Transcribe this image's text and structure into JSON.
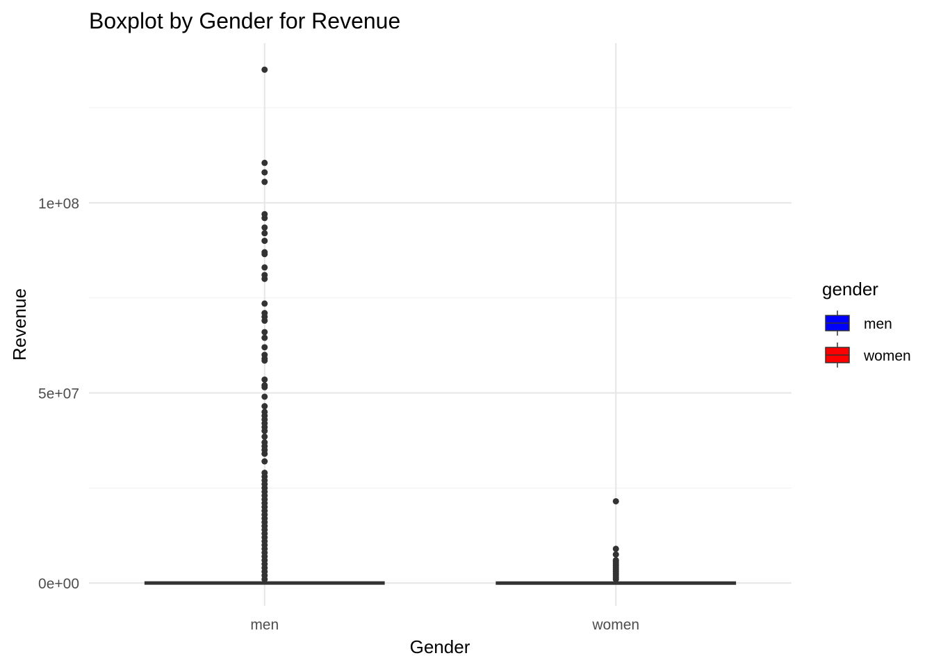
{
  "chart_data": {
    "type": "boxplot",
    "title": "Boxplot by Gender for Revenue",
    "xlabel": "Gender",
    "ylabel": "Revenue",
    "categories": [
      "men",
      "women"
    ],
    "ylim": [
      -6000000,
      142000000
    ],
    "y_ticks": [
      {
        "value": 0,
        "label": "0e+00"
      },
      {
        "value": 50000000,
        "label": "5e+07"
      },
      {
        "value": 100000000,
        "label": "1e+08"
      }
    ],
    "y_minor_ticks": [
      25000000,
      75000000,
      125000000
    ],
    "grid": true,
    "legend": {
      "title": "gender",
      "placement": "right",
      "entries": [
        {
          "label": "men",
          "color": "#0000FF"
        },
        {
          "label": "women",
          "color": "#FF0000"
        }
      ]
    },
    "boxes": [
      {
        "category": "men",
        "fill": "#0000FF",
        "q1": 0,
        "median": 0,
        "q3": 100000,
        "whisker_low": 0,
        "whisker_high": 200000,
        "outliers": [
          135000000,
          110500000,
          108000000,
          105500000,
          97000000,
          96000000,
          93500000,
          92000000,
          90000000,
          87000000,
          86500000,
          83000000,
          81000000,
          80000000,
          73500000,
          71000000,
          70000000,
          69000000,
          66000000,
          64500000,
          62000000,
          60000000,
          59000000,
          58500000,
          53500000,
          52000000,
          51500000,
          49000000,
          46500000,
          45000000,
          44000000,
          43000000,
          42000000,
          41000000,
          40000000,
          38500000,
          37000000,
          36000000,
          35000000,
          34000000,
          32000000,
          29000000,
          28000000,
          27000000,
          26000000,
          25000000,
          24000000,
          23000000,
          22000000,
          21000000,
          20000000,
          19000000,
          18000000,
          17000000,
          16000000,
          15000000,
          14000000,
          13000000,
          12000000,
          11000000,
          10000000,
          9000000,
          8000000,
          7000000,
          6000000,
          5000000,
          4000000,
          3000000,
          2000000,
          1000000
        ]
      },
      {
        "category": "women",
        "fill": "#FF0000",
        "q1": 0,
        "median": 0,
        "q3": 80000,
        "whisker_low": 0,
        "whisker_high": 150000,
        "outliers": [
          21500000,
          9000000,
          7500000,
          6000000,
          5500000,
          5000000,
          4500000,
          4000000,
          3500000,
          3000000,
          2500000,
          2000000,
          1500000,
          1000000
        ]
      }
    ]
  }
}
